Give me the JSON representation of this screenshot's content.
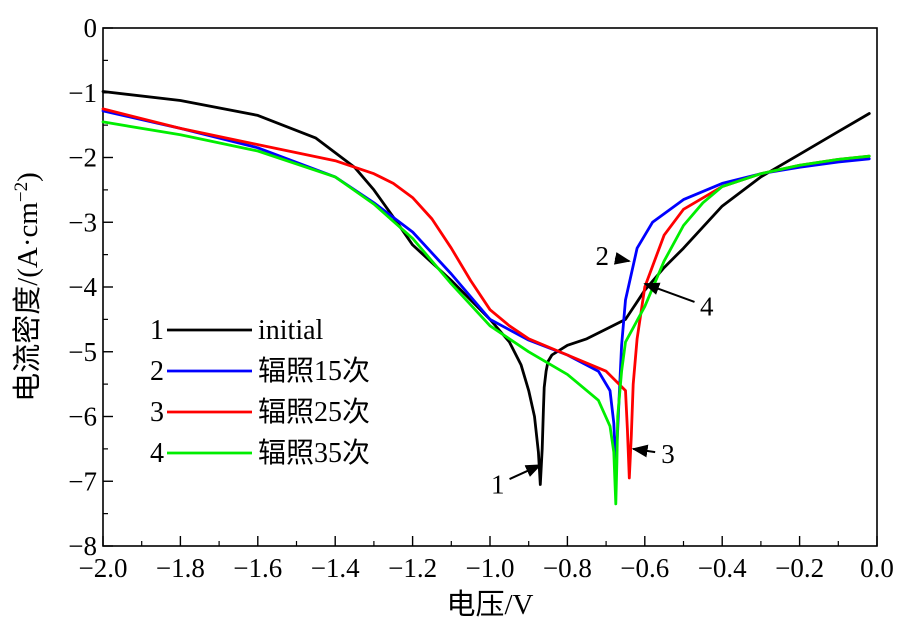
{
  "chart_data": {
    "type": "line",
    "title": "",
    "xlabel": "电压/V",
    "ylabel": "电流密度/(A·cm",
    "ylabel_sup": "−2",
    "ylabel_end": ")",
    "xlim": [
      -2.0,
      0.0
    ],
    "ylim": [
      -8,
      0
    ],
    "x_ticks": [
      -2.0,
      -1.8,
      -1.6,
      -1.4,
      -1.2,
      -1.0,
      -0.8,
      -0.6,
      -0.4,
      -0.2,
      0.0
    ],
    "x_tick_labels": [
      "−2.0",
      "−1.8",
      "−1.6",
      "−1.4",
      "−1.2",
      "−1.0",
      "−0.8",
      "−0.6",
      "−0.4",
      "−0.2",
      "0.0"
    ],
    "y_ticks": [
      0,
      -1,
      -2,
      -3,
      -4,
      -5,
      -6,
      -7,
      -8
    ],
    "y_tick_labels": [
      "0",
      "−1",
      "−2",
      "−3",
      "−4",
      "−5",
      "−6",
      "−7",
      "−8"
    ],
    "grid": false,
    "legend_position": "bottom-left",
    "series": [
      {
        "id": "1",
        "name": "initial",
        "color": "#000000",
        "x": [
          -2.0,
          -1.8,
          -1.6,
          -1.45,
          -1.35,
          -1.3,
          -1.25,
          -1.2,
          -1.1,
          -1.0,
          -0.95,
          -0.92,
          -0.9,
          -0.885,
          -0.875,
          -0.87,
          -0.865,
          -0.862,
          -0.86,
          -0.855,
          -0.85,
          -0.84,
          -0.8,
          -0.75,
          -0.7,
          -0.65,
          -0.6,
          -0.55,
          -0.5,
          -0.4,
          -0.3,
          -0.2,
          -0.1,
          -0.02
        ],
        "y": [
          -0.98,
          -1.12,
          -1.35,
          -1.7,
          -2.15,
          -2.5,
          -2.92,
          -3.35,
          -3.9,
          -4.5,
          -4.85,
          -5.2,
          -5.6,
          -6.0,
          -6.55,
          -7.05,
          -6.5,
          -5.9,
          -5.55,
          -5.3,
          -5.15,
          -5.05,
          -4.9,
          -4.8,
          -4.65,
          -4.5,
          -4.05,
          -3.7,
          -3.4,
          -2.75,
          -2.3,
          -1.95,
          -1.6,
          -1.32
        ]
      },
      {
        "id": "2",
        "name": "辐照15次",
        "color": "#0000ff",
        "x": [
          -2.0,
          -1.8,
          -1.6,
          -1.4,
          -1.3,
          -1.2,
          -1.1,
          -1.0,
          -0.9,
          -0.8,
          -0.72,
          -0.69,
          -0.68,
          -0.675,
          -0.67,
          -0.665,
          -0.66,
          -0.65,
          -0.62,
          -0.58,
          -0.5,
          -0.4,
          -0.3,
          -0.2,
          -0.1,
          -0.02
        ],
        "y": [
          -1.28,
          -1.55,
          -1.85,
          -2.3,
          -2.7,
          -3.15,
          -3.8,
          -4.5,
          -4.82,
          -5.05,
          -5.3,
          -5.6,
          -6.1,
          -6.75,
          -6.2,
          -5.55,
          -4.9,
          -4.2,
          -3.4,
          -3.0,
          -2.65,
          -2.4,
          -2.25,
          -2.15,
          -2.07,
          -2.02
        ]
      },
      {
        "id": "3",
        "name": "辐照25次",
        "color": "#ff0000",
        "x": [
          -2.0,
          -1.8,
          -1.6,
          -1.4,
          -1.3,
          -1.25,
          -1.2,
          -1.15,
          -1.1,
          -1.05,
          -1.0,
          -0.95,
          -0.9,
          -0.8,
          -0.7,
          -0.65,
          -0.645,
          -0.64,
          -0.635,
          -0.63,
          -0.62,
          -0.6,
          -0.55,
          -0.5,
          -0.4,
          -0.3,
          -0.2,
          -0.1,
          -0.02
        ],
        "y": [
          -1.25,
          -1.55,
          -1.8,
          -2.05,
          -2.25,
          -2.4,
          -2.62,
          -2.95,
          -3.4,
          -3.9,
          -4.35,
          -4.6,
          -4.8,
          -5.05,
          -5.3,
          -5.6,
          -6.2,
          -6.95,
          -6.3,
          -5.5,
          -4.8,
          -4.0,
          -3.2,
          -2.8,
          -2.45,
          -2.25,
          -2.12,
          -2.03,
          -1.98
        ]
      },
      {
        "id": "4",
        "name": "辐照35次",
        "color": "#00ee00",
        "x": [
          -2.0,
          -1.8,
          -1.6,
          -1.4,
          -1.3,
          -1.2,
          -1.1,
          -1.0,
          -0.9,
          -0.8,
          -0.72,
          -0.69,
          -0.68,
          -0.675,
          -0.672,
          -0.67,
          -0.66,
          -0.65,
          -0.6,
          -0.55,
          -0.5,
          -0.45,
          -0.4,
          -0.3,
          -0.2,
          -0.1,
          -0.02
        ],
        "y": [
          -1.45,
          -1.65,
          -1.9,
          -2.3,
          -2.72,
          -3.25,
          -3.95,
          -4.6,
          -5.0,
          -5.35,
          -5.75,
          -6.15,
          -6.55,
          -7.35,
          -6.7,
          -6.0,
          -5.3,
          -4.85,
          -4.3,
          -3.6,
          -3.05,
          -2.7,
          -2.45,
          -2.25,
          -2.12,
          -2.03,
          -1.98
        ]
      }
    ],
    "annotations": [
      {
        "label": "1",
        "target": [
          -0.87,
          -6.75
        ],
        "text_at": [
          -0.98,
          -7.05
        ]
      },
      {
        "label": "2",
        "target": [
          -0.64,
          -3.6
        ],
        "text_at": [
          -0.71,
          -3.52
        ]
      },
      {
        "label": "3",
        "target": [
          -0.63,
          -6.5
        ],
        "text_at": [
          -0.54,
          -6.58
        ]
      },
      {
        "label": "4",
        "target": [
          -0.6,
          -3.95
        ],
        "text_at": [
          -0.44,
          -4.3
        ]
      }
    ]
  }
}
